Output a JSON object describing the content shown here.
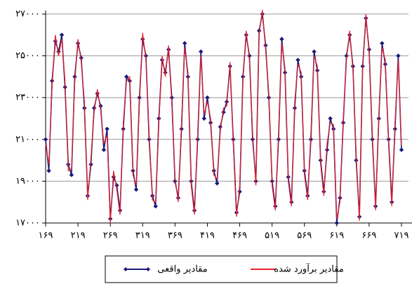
{
  "chart_data": {
    "type": "line",
    "x": [
      169,
      174,
      179,
      184,
      189,
      194,
      199,
      204,
      209,
      214,
      219,
      224,
      229,
      234,
      239,
      244,
      249,
      254,
      259,
      264,
      269,
      274,
      279,
      284,
      289,
      294,
      299,
      304,
      309,
      314,
      319,
      324,
      329,
      334,
      339,
      344,
      349,
      354,
      359,
      364,
      369,
      374,
      379,
      384,
      389,
      394,
      399,
      404,
      409,
      414,
      419,
      424,
      429,
      434,
      439,
      444,
      449,
      454,
      459,
      464,
      469,
      474,
      479,
      484,
      489,
      494,
      499,
      504,
      509,
      514,
      519,
      524,
      529,
      534,
      539,
      544,
      549,
      554,
      559,
      564,
      569,
      574,
      579,
      584,
      589,
      594,
      599,
      604,
      609,
      614,
      619,
      624,
      629,
      634,
      639,
      644,
      649,
      654,
      659,
      664,
      669,
      674,
      679,
      684,
      689,
      694,
      699,
      704,
      709,
      714,
      719
    ],
    "series": [
      {
        "name": "مقادیر واقعی",
        "color": "#1a1a7a",
        "values": [
          21000,
          19500,
          23800,
          25700,
          25200,
          26000,
          23500,
          19800,
          19300,
          24000,
          25600,
          24900,
          22500,
          18300,
          19800,
          22500,
          23200,
          22600,
          20500,
          21500,
          17200,
          19200,
          18800,
          17600,
          21500,
          24000,
          23800,
          19500,
          18600,
          23000,
          25800,
          25000,
          21000,
          18300,
          17800,
          22000,
          24800,
          24200,
          25300,
          23000,
          19000,
          18200,
          21500,
          25600,
          24000,
          19000,
          17600,
          21000,
          25200,
          22000,
          23000,
          21800,
          19500,
          18900,
          21600,
          22300,
          22800,
          24500,
          21000,
          17500,
          18500,
          24000,
          26000,
          25000,
          21000,
          19000,
          26200,
          27000,
          25500,
          23000,
          19000,
          17800,
          21000,
          25800,
          24200,
          19200,
          18000,
          22500,
          24800,
          24000,
          19500,
          18300,
          21000,
          25200,
          24300,
          20000,
          18500,
          20500,
          22000,
          21500,
          17000,
          18200,
          21800,
          25000,
          26000,
          24500,
          20000,
          17300,
          24500,
          26800,
          25300,
          21000,
          17800,
          22000,
          25600,
          24600,
          21000,
          18000,
          21500,
          25000,
          20500
        ]
      },
      {
        "name": "مقادیر برآورد شده",
        "color": "#e8202a",
        "values": [
          20800,
          19800,
          23500,
          26000,
          25000,
          25800,
          23800,
          19500,
          19600,
          23700,
          25800,
          24700,
          22800,
          18100,
          20100,
          22300,
          23400,
          22400,
          20800,
          21200,
          17000,
          19500,
          18600,
          17400,
          21800,
          23800,
          24000,
          19300,
          18800,
          22700,
          26100,
          24800,
          21300,
          18100,
          18000,
          21700,
          25000,
          24000,
          25500,
          22700,
          19200,
          18000,
          21800,
          25400,
          24200,
          18800,
          17400,
          21300,
          25000,
          22200,
          22800,
          22000,
          19300,
          19100,
          21400,
          22500,
          22600,
          24700,
          20800,
          17300,
          18800,
          23800,
          26200,
          24800,
          21300,
          18800,
          26000,
          27200,
          25300,
          23200,
          18800,
          17600,
          21300,
          25600,
          24400,
          19000,
          17800,
          22800,
          24600,
          24200,
          19300,
          18100,
          21300,
          25000,
          24500,
          19800,
          18300,
          20800,
          21800,
          21700,
          17200,
          18000,
          22000,
          24800,
          26200,
          24300,
          20300,
          17100,
          24300,
          27000,
          25100,
          21300,
          17600,
          22200,
          25400,
          24800,
          20800,
          17800,
          21800,
          24800,
          20700
        ]
      }
    ],
    "xlim": [
      169,
      719
    ],
    "ylim": [
      17000,
      27000
    ],
    "xticks": [
      {
        "value": 169,
        "label": "۱۶۹"
      },
      {
        "value": 219,
        "label": "۲۱۹"
      },
      {
        "value": 269,
        "label": "۲۶۹"
      },
      {
        "value": 319,
        "label": "۳۱۹"
      },
      {
        "value": 369,
        "label": "۳۶۹"
      },
      {
        "value": 419,
        "label": "۴۱۹"
      },
      {
        "value": 469,
        "label": "۴۶۹"
      },
      {
        "value": 519,
        "label": "۵۱۹"
      },
      {
        "value": 569,
        "label": "۵۶۹"
      },
      {
        "value": 619,
        "label": "۶۱۹"
      },
      {
        "value": 669,
        "label": "۶۶۹"
      },
      {
        "value": 719,
        "label": "۷۱۹"
      }
    ],
    "yticks": [
      {
        "value": 17000,
        "label": "۱۷۰۰۰"
      },
      {
        "value": 19000,
        "label": "۱۹۰۰۰"
      },
      {
        "value": 21000,
        "label": "۲۱۰۰۰"
      },
      {
        "value": 23000,
        "label": "۲۳۰۰۰"
      },
      {
        "value": 25000,
        "label": "۲۵۰۰۰"
      },
      {
        "value": 27000,
        "label": "۲۷۰۰۰"
      }
    ],
    "grid": true
  }
}
